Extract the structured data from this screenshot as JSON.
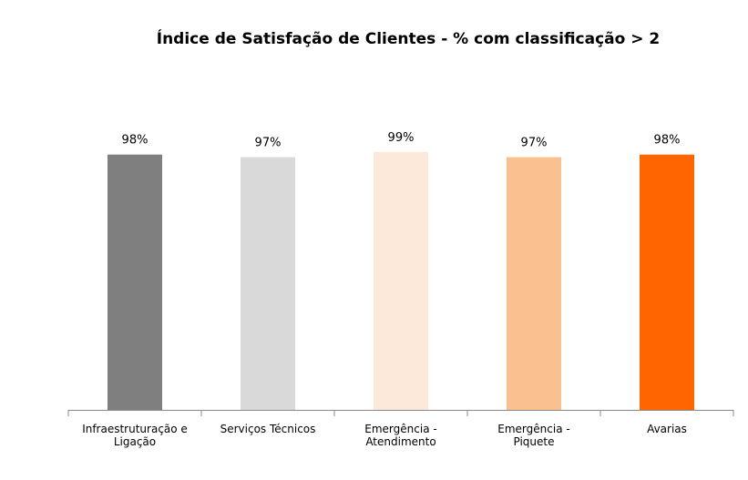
{
  "chart_data": {
    "type": "bar",
    "title": "Índice de Satisfação de Clientes - % com classificação > 2",
    "categories": [
      "Infraestruturação e\nLigação",
      "Serviços Técnicos",
      "Emergência  -\nAtendimento",
      "Emergência -\nPiquete",
      "Avarias"
    ],
    "values": [
      98,
      97,
      99,
      97,
      98
    ],
    "value_labels": [
      "98%",
      "97%",
      "99%",
      "97%",
      "98%"
    ],
    "colors": [
      "#7f7f7f",
      "#d9d9d9",
      "#fde9d9",
      "#fac090",
      "#ff6600"
    ],
    "ylim": [
      0,
      100
    ]
  }
}
